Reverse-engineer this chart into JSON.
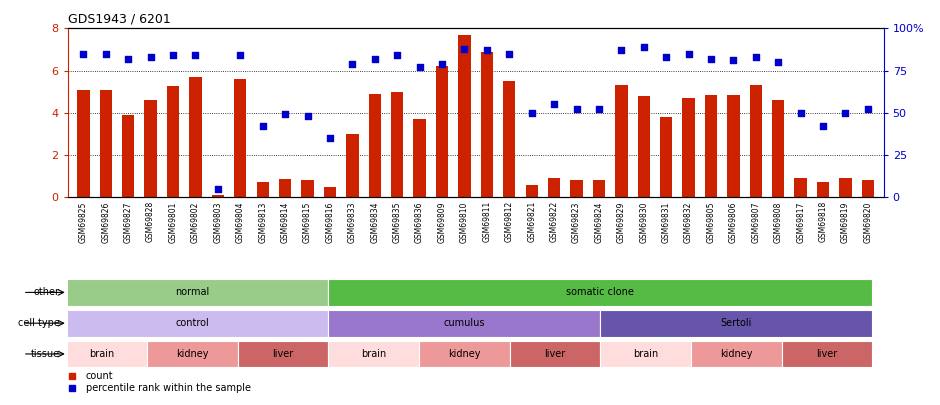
{
  "title": "GDS1943 / 6201",
  "samples": [
    "GSM69825",
    "GSM69826",
    "GSM69827",
    "GSM69828",
    "GSM69801",
    "GSM69802",
    "GSM69803",
    "GSM69804",
    "GSM69813",
    "GSM69814",
    "GSM69815",
    "GSM69816",
    "GSM69833",
    "GSM69834",
    "GSM69835",
    "GSM69836",
    "GSM69809",
    "GSM69810",
    "GSM69811",
    "GSM69812",
    "GSM69821",
    "GSM69822",
    "GSM69823",
    "GSM69824",
    "GSM69829",
    "GSM69830",
    "GSM69831",
    "GSM69832",
    "GSM69805",
    "GSM69806",
    "GSM69807",
    "GSM69808",
    "GSM69817",
    "GSM69818",
    "GSM69819",
    "GSM69820"
  ],
  "bar_values": [
    5.1,
    5.1,
    3.9,
    4.6,
    5.25,
    5.7,
    0.1,
    5.6,
    0.7,
    0.85,
    0.8,
    0.5,
    3.0,
    4.9,
    5.0,
    3.7,
    6.2,
    7.7,
    6.9,
    5.5,
    0.6,
    0.9,
    0.8,
    0.8,
    5.3,
    4.8,
    3.8,
    4.7,
    4.85,
    4.85,
    5.3,
    4.6,
    0.9,
    0.7,
    0.9,
    0.8
  ],
  "dot_values": [
    85,
    85,
    82,
    83,
    84,
    84,
    5,
    84,
    42,
    49,
    48,
    35,
    79,
    82,
    84,
    77,
    79,
    88,
    87,
    85,
    50,
    55,
    52,
    52,
    87,
    89,
    83,
    85,
    82,
    81,
    83,
    80,
    50,
    42,
    50,
    52
  ],
  "ylim_left": [
    0,
    8
  ],
  "ylim_right": [
    0,
    100
  ],
  "yticks_left": [
    0,
    2,
    4,
    6,
    8
  ],
  "yticks_right": [
    0,
    25,
    50,
    75,
    100
  ],
  "bar_color": "#cc2200",
  "dot_color": "#0000cc",
  "annotation_rows": [
    {
      "label": "other",
      "segments": [
        {
          "text": "normal",
          "start": 0,
          "end": 11,
          "color": "#99cc88"
        },
        {
          "text": "somatic clone",
          "start": 12,
          "end": 35,
          "color": "#55bb44"
        }
      ]
    },
    {
      "label": "cell type",
      "segments": [
        {
          "text": "control",
          "start": 0,
          "end": 11,
          "color": "#ccbbee"
        },
        {
          "text": "cumulus",
          "start": 12,
          "end": 23,
          "color": "#9977cc"
        },
        {
          "text": "Sertoli",
          "start": 24,
          "end": 35,
          "color": "#6655aa"
        }
      ]
    },
    {
      "label": "tissue",
      "segments": [
        {
          "text": "brain",
          "start": 0,
          "end": 3,
          "color": "#ffdddd"
        },
        {
          "text": "kidney",
          "start": 4,
          "end": 7,
          "color": "#ee9999"
        },
        {
          "text": "liver",
          "start": 8,
          "end": 11,
          "color": "#cc6666"
        },
        {
          "text": "brain",
          "start": 12,
          "end": 15,
          "color": "#ffdddd"
        },
        {
          "text": "kidney",
          "start": 16,
          "end": 19,
          "color": "#ee9999"
        },
        {
          "text": "liver",
          "start": 20,
          "end": 23,
          "color": "#cc6666"
        },
        {
          "text": "brain",
          "start": 24,
          "end": 27,
          "color": "#ffdddd"
        },
        {
          "text": "kidney",
          "start": 28,
          "end": 31,
          "color": "#ee9999"
        },
        {
          "text": "liver",
          "start": 32,
          "end": 35,
          "color": "#cc6666"
        }
      ]
    }
  ],
  "legend": [
    {
      "label": "count",
      "color": "#cc2200"
    },
    {
      "label": "percentile rank within the sample",
      "color": "#0000cc"
    }
  ]
}
